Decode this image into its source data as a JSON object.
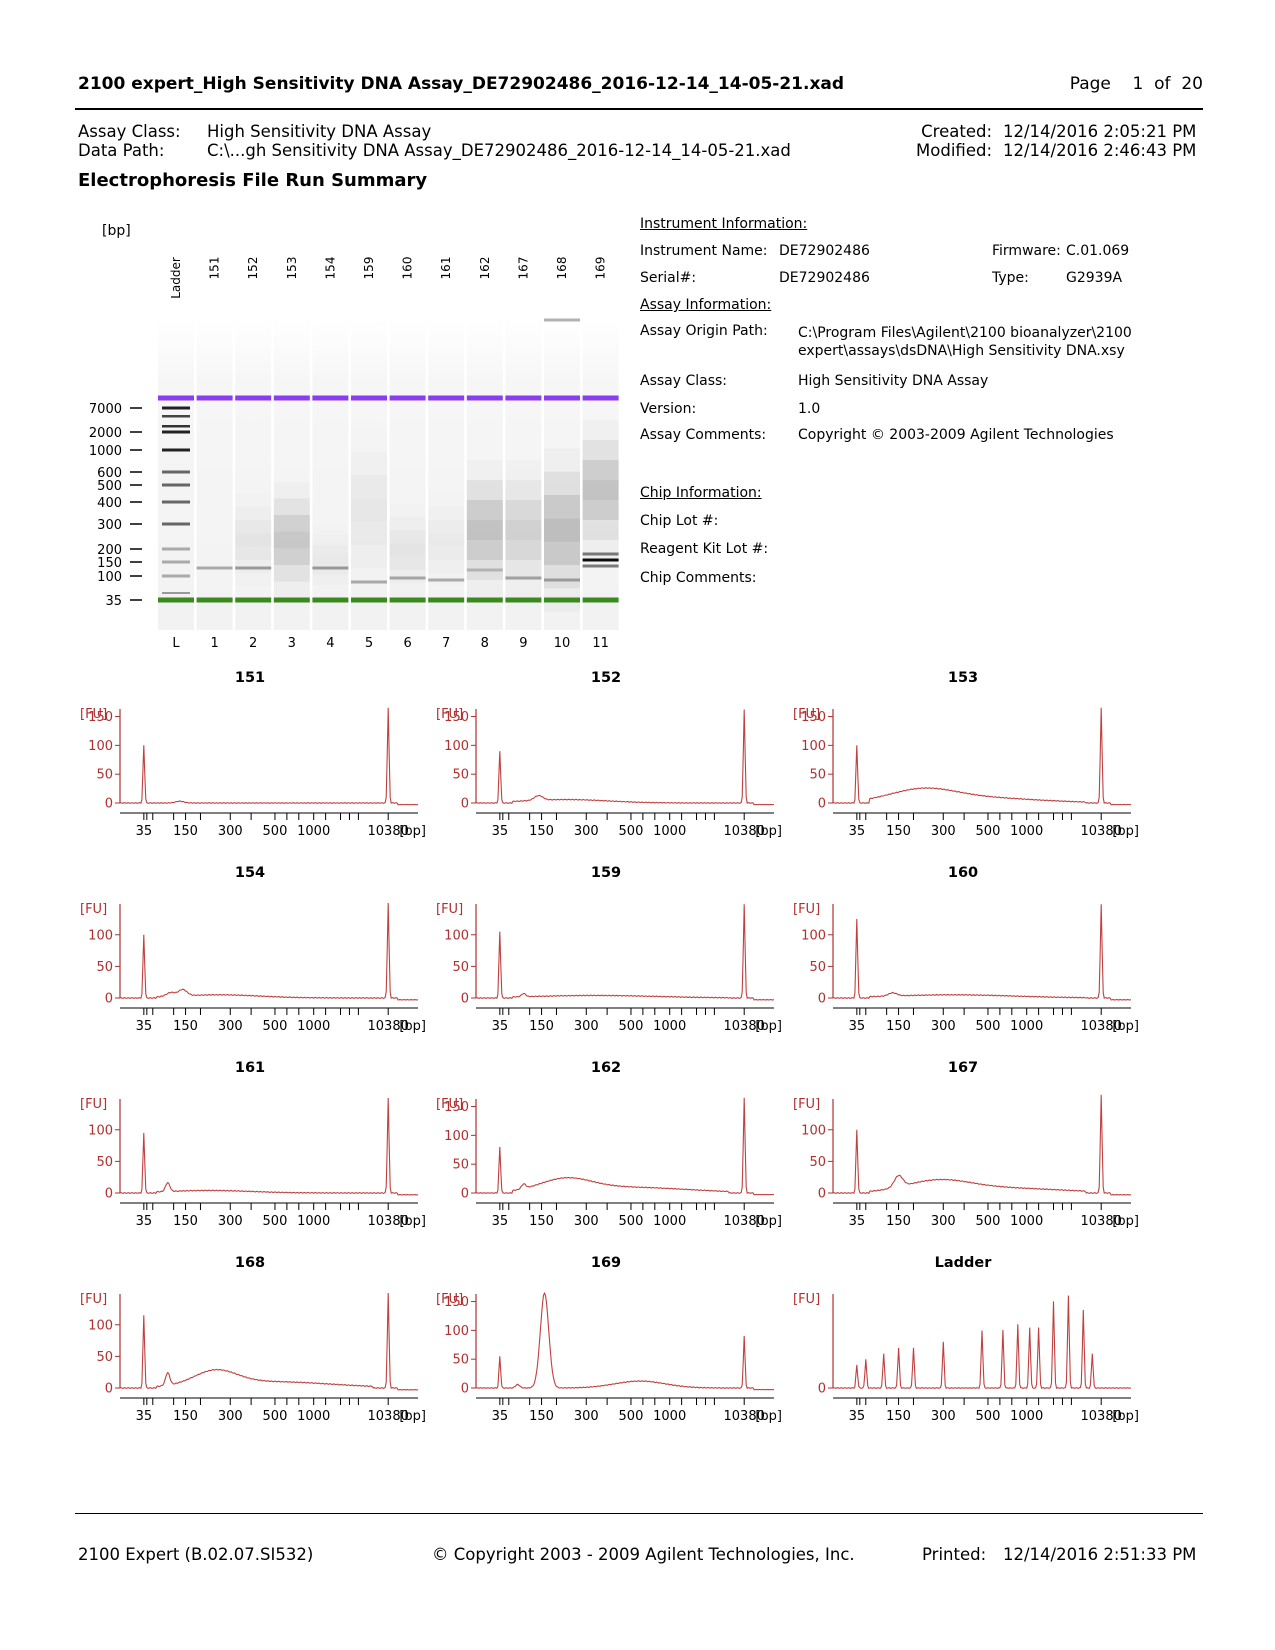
{
  "header": {
    "title": "2100 expert_High Sensitivity DNA Assay_DE72902486_2016-12-14_14-05-21.xad",
    "page_label": "Page",
    "page_num": "1",
    "of_label": "of",
    "page_total": "20"
  },
  "meta": {
    "assay_class_label": "Assay Class:",
    "assay_class_value": "High Sensitivity DNA Assay",
    "data_path_label": "Data Path:",
    "data_path_value": "C:\\...gh Sensitivity DNA Assay_DE72902486_2016-12-14_14-05-21.xad",
    "created_label": "Created:",
    "created_value": "12/14/2016 2:05:21 PM",
    "modified_label": "Modified:",
    "modified_value": "12/14/2016 2:46:43 PM"
  },
  "section_title": "Electrophoresis File Run Summary",
  "gel": {
    "unit": "[bp]",
    "lane_names": [
      "Ladder",
      "151",
      "152",
      "153",
      "154",
      "159",
      "160",
      "161",
      "162",
      "167",
      "168",
      "169"
    ],
    "lane_numbers": [
      "L",
      "1",
      "2",
      "3",
      "4",
      "5",
      "6",
      "7",
      "8",
      "9",
      "10",
      "11"
    ],
    "ladder_labels": [
      "7000",
      "2000",
      "1000",
      "600",
      "500",
      "400",
      "300",
      "200",
      "150",
      "100",
      "35"
    ],
    "upper_marker_color": "#8a3cf0",
    "lower_marker_color": "#3b8a1e"
  },
  "instrument": {
    "heading": "Instrument Information:",
    "name_label": "Instrument Name:",
    "name_value": "DE72902486",
    "serial_label": "Serial#:",
    "serial_value": "DE72902486",
    "firmware_label": "Firmware:",
    "firmware_value": "C.01.069",
    "type_label": "Type:",
    "type_value": "G2939A"
  },
  "assay": {
    "heading": "Assay Information:",
    "origin_label": "Assay Origin Path:",
    "origin_line1": "C:\\Program Files\\Agilent\\2100 bioanalyzer\\2100",
    "origin_line2": "expert\\assays\\dsDNA\\High Sensitivity DNA.xsy",
    "class_label": "Assay Class:",
    "class_value": "High Sensitivity DNA Assay",
    "version_label": "Version:",
    "version_value": "1.0",
    "comments_label": "Assay Comments:",
    "comments_value": "Copyright © 2003-2009 Agilent Technologies"
  },
  "chip": {
    "heading": "Chip Information:",
    "lot_label": "Chip Lot #:",
    "reagent_label": "Reagent Kit Lot #:",
    "comments_label": "Chip Comments:"
  },
  "electropherograms": {
    "y_unit": "[FU]",
    "x_unit": "[bp]",
    "x_tick_labels": [
      "35",
      "150",
      "300",
      "500",
      "1000",
      "10380"
    ],
    "line_color": "#c04040",
    "axis_color": "#b03030",
    "plots": [
      {
        "title": "151",
        "y_ticks": [
          "0",
          "50",
          "100",
          "150"
        ],
        "y_max": 170,
        "lower_marker": 100,
        "upper_marker": 165
      },
      {
        "title": "152",
        "y_ticks": [
          "0",
          "50",
          "100",
          "150"
        ],
        "y_max": 170,
        "lower_marker": 90,
        "upper_marker": 162
      },
      {
        "title": "153",
        "y_ticks": [
          "0",
          "50",
          "100",
          "150"
        ],
        "y_max": 170,
        "lower_marker": 100,
        "upper_marker": 165
      },
      {
        "title": "154",
        "y_ticks": [
          "0",
          "50",
          "100"
        ],
        "y_max": 155,
        "lower_marker": 100,
        "upper_marker": 150
      },
      {
        "title": "159",
        "y_ticks": [
          "0",
          "50",
          "100"
        ],
        "y_max": 155,
        "lower_marker": 105,
        "upper_marker": 148
      },
      {
        "title": "160",
        "y_ticks": [
          "0",
          "50",
          "100"
        ],
        "y_max": 155,
        "lower_marker": 125,
        "upper_marker": 148
      },
      {
        "title": "161",
        "y_ticks": [
          "0",
          "50",
          "100"
        ],
        "y_max": 155,
        "lower_marker": 95,
        "upper_marker": 150
      },
      {
        "title": "162",
        "y_ticks": [
          "0",
          "50",
          "100",
          "150"
        ],
        "y_max": 170,
        "lower_marker": 80,
        "upper_marker": 165
      },
      {
        "title": "167",
        "y_ticks": [
          "0",
          "50",
          "100"
        ],
        "y_max": 155,
        "lower_marker": 100,
        "upper_marker": 155
      },
      {
        "title": "168",
        "y_ticks": [
          "0",
          "50",
          "100"
        ],
        "y_max": 155,
        "lower_marker": 115,
        "upper_marker": 150
      },
      {
        "title": "169",
        "y_ticks": [
          "0",
          "50",
          "100",
          "150"
        ],
        "y_max": 170,
        "lower_marker": 55,
        "upper_marker": 90
      },
      {
        "title": "Ladder",
        "y_ticks": [
          "0"
        ],
        "y_max": 170,
        "lower_marker": 40,
        "upper_marker": 160
      }
    ]
  },
  "footer": {
    "software": "2100 Expert (B.02.07.SI532)",
    "copyright": "© Copyright 2003 - 2009 Agilent Technologies, Inc.",
    "printed_label": "Printed:",
    "printed_value": "12/14/2016 2:51:33 PM"
  }
}
